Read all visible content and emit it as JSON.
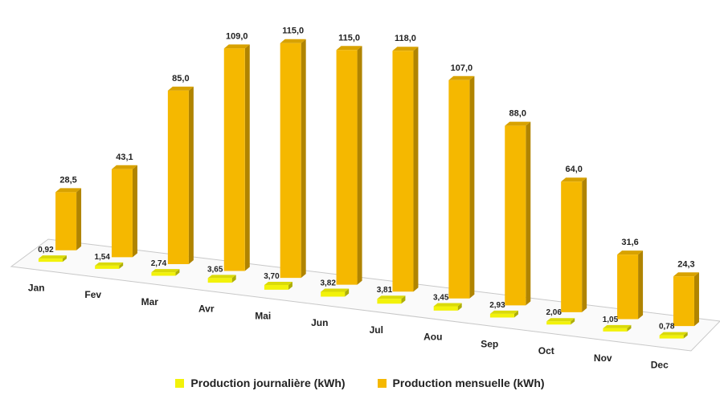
{
  "chart_data": {
    "type": "bar",
    "view": "3d",
    "categories": [
      "Jan",
      "Fev",
      "Mar",
      "Avr",
      "Mai",
      "Jun",
      "Jul",
      "Aou",
      "Sep",
      "Oct",
      "Nov",
      "Dec"
    ],
    "series": [
      {
        "name": "Production journalière (kWh)",
        "color": "#f2f20a",
        "values": [
          0.92,
          1.54,
          2.74,
          3.65,
          3.7,
          3.82,
          3.81,
          3.45,
          2.93,
          2.06,
          1.05,
          0.78
        ],
        "labels": [
          "0,92",
          "1,54",
          "2,74",
          "3,65",
          "3,70",
          "3,82",
          "3,81",
          "3,45",
          "2,93",
          "2,06",
          "1,05",
          "0,78"
        ]
      },
      {
        "name": "Production mensuelle (kWh)",
        "color": "#f5b800",
        "values": [
          28.5,
          43.1,
          85.0,
          109.0,
          115.0,
          115.0,
          118.0,
          107.0,
          88.0,
          64.0,
          31.6,
          24.3
        ],
        "labels": [
          "28,5",
          "43,1",
          "85,0",
          "109,0",
          "115,0",
          "115,0",
          "118,0",
          "107,0",
          "88,0",
          "64,0",
          "31,6",
          "24,3"
        ]
      }
    ],
    "ylim": [
      0,
      118
    ],
    "legend_position": "bottom",
    "grid": false,
    "title": "",
    "xlabel": "",
    "ylabel": ""
  }
}
